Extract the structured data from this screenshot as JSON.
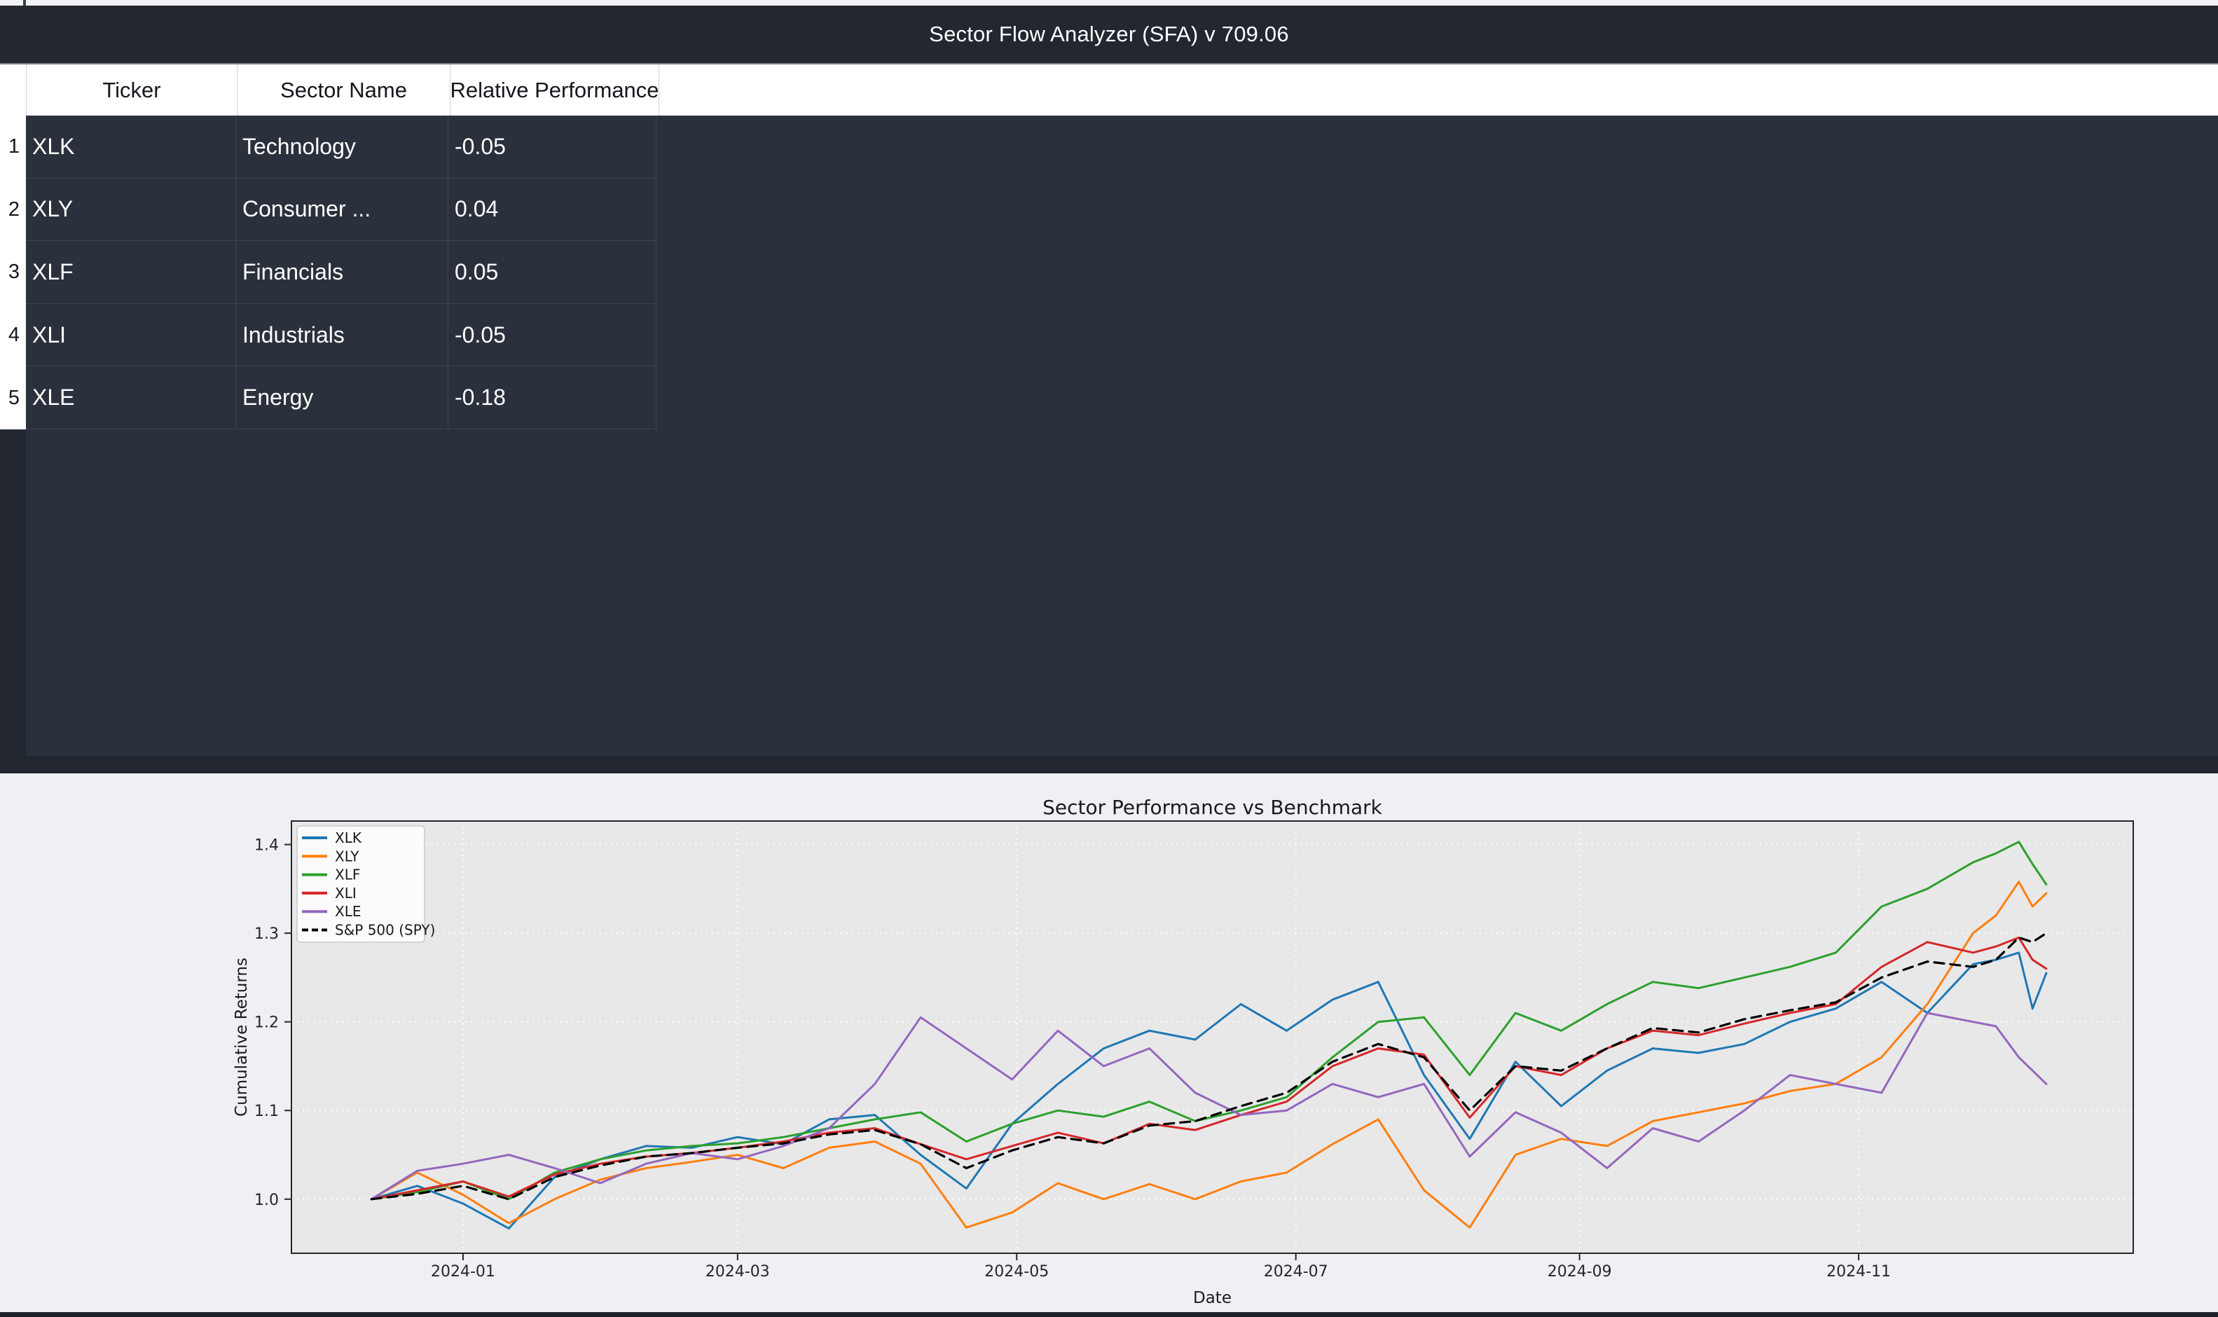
{
  "window": {
    "title": "Sector Flow Analyzer (SFA) v 709.06"
  },
  "table": {
    "columns": [
      "Ticker",
      "Sector Name",
      "Relative Performance"
    ],
    "rows": [
      {
        "num": "1",
        "ticker": "XLK",
        "sector": "Technology",
        "perf": "-0.05"
      },
      {
        "num": "2",
        "ticker": "XLY",
        "sector": "Consumer ...",
        "perf": "0.04"
      },
      {
        "num": "3",
        "ticker": "XLF",
        "sector": "Financials",
        "perf": "0.05"
      },
      {
        "num": "4",
        "ticker": "XLI",
        "sector": "Industrials",
        "perf": "-0.05"
      },
      {
        "num": "5",
        "ticker": "XLE",
        "sector": "Energy",
        "perf": "-0.18"
      }
    ]
  },
  "colors": {
    "titlebar_bg": "#222730",
    "panel_bg": "#2b313c",
    "header_bg": "#ffffff",
    "figure_bg": "#eef0f4",
    "axes_bg": "#e8e8e9"
  },
  "chart_data": {
    "type": "line",
    "title": "Sector Performance vs Benchmark",
    "xlabel": "Date",
    "ylabel": "Cumulative Returns",
    "grid": true,
    "legend_position": "upper left",
    "x_unit": "days since 2023-12-12",
    "xlim_days": [
      -17.5,
      385
    ],
    "ylim": [
      0.939,
      1.4265
    ],
    "y_ticks": [
      1.0,
      1.1,
      1.2,
      1.3,
      1.4
    ],
    "x_ticks": [
      {
        "day": 20,
        "label": "2024-01"
      },
      {
        "day": 80,
        "label": "2024-03"
      },
      {
        "day": 141,
        "label": "2024-05"
      },
      {
        "day": 202,
        "label": "2024-07"
      },
      {
        "day": 264,
        "label": "2024-09"
      },
      {
        "day": 325,
        "label": "2024-11"
      }
    ],
    "days": [
      0,
      10,
      20,
      30,
      40,
      50,
      60,
      70,
      80,
      90,
      100,
      110,
      120,
      130,
      140,
      150,
      160,
      170,
      180,
      190,
      200,
      210,
      220,
      230,
      240,
      250,
      260,
      270,
      280,
      290,
      300,
      310,
      320,
      330,
      340,
      350,
      355,
      360,
      363,
      366
    ],
    "series": [
      {
        "name": "XLK",
        "color": "#1f77b4",
        "style": "solid",
        "values": [
          1.0,
          1.015,
          0.995,
          0.967,
          1.025,
          1.045,
          1.06,
          1.058,
          1.07,
          1.062,
          1.09,
          1.095,
          1.05,
          1.012,
          1.085,
          1.13,
          1.17,
          1.19,
          1.18,
          1.22,
          1.19,
          1.225,
          1.245,
          1.14,
          1.068,
          1.155,
          1.105,
          1.145,
          1.17,
          1.165,
          1.175,
          1.2,
          1.215,
          1.245,
          1.21,
          1.265,
          1.27,
          1.278,
          1.215,
          1.255
        ]
      },
      {
        "name": "XLY",
        "color": "#ff7f0e",
        "style": "solid",
        "values": [
          1.0,
          1.03,
          1.005,
          0.973,
          1.0,
          1.022,
          1.035,
          1.042,
          1.05,
          1.035,
          1.058,
          1.065,
          1.04,
          0.968,
          0.985,
          1.018,
          1.0,
          1.017,
          1.0,
          1.02,
          1.03,
          1.062,
          1.09,
          1.01,
          0.968,
          1.05,
          1.068,
          1.06,
          1.088,
          1.098,
          1.108,
          1.122,
          1.13,
          1.16,
          1.22,
          1.3,
          1.32,
          1.358,
          1.33,
          1.345
        ]
      },
      {
        "name": "XLF",
        "color": "#2ca02c",
        "style": "solid",
        "values": [
          1.0,
          1.008,
          1.02,
          1.0,
          1.03,
          1.045,
          1.055,
          1.06,
          1.063,
          1.07,
          1.08,
          1.09,
          1.098,
          1.065,
          1.085,
          1.1,
          1.093,
          1.11,
          1.088,
          1.1,
          1.115,
          1.16,
          1.2,
          1.205,
          1.14,
          1.21,
          1.19,
          1.22,
          1.245,
          1.238,
          1.25,
          1.262,
          1.278,
          1.33,
          1.35,
          1.38,
          1.39,
          1.403,
          1.378,
          1.355
        ]
      },
      {
        "name": "XLI",
        "color": "#d62728",
        "style": "solid",
        "values": [
          1.0,
          1.01,
          1.02,
          1.003,
          1.028,
          1.04,
          1.048,
          1.052,
          1.058,
          1.065,
          1.075,
          1.08,
          1.062,
          1.045,
          1.06,
          1.075,
          1.063,
          1.085,
          1.078,
          1.095,
          1.11,
          1.15,
          1.17,
          1.163,
          1.092,
          1.15,
          1.14,
          1.17,
          1.19,
          1.185,
          1.198,
          1.21,
          1.22,
          1.262,
          1.29,
          1.278,
          1.285,
          1.295,
          1.27,
          1.26
        ]
      },
      {
        "name": "XLE",
        "color": "#9467bd",
        "style": "solid",
        "values": [
          1.0,
          1.032,
          1.04,
          1.05,
          1.035,
          1.018,
          1.04,
          1.052,
          1.045,
          1.06,
          1.08,
          1.13,
          1.205,
          1.17,
          1.135,
          1.19,
          1.15,
          1.17,
          1.12,
          1.095,
          1.1,
          1.13,
          1.115,
          1.13,
          1.048,
          1.098,
          1.075,
          1.035,
          1.08,
          1.065,
          1.1,
          1.14,
          1.13,
          1.12,
          1.21,
          1.2,
          1.195,
          1.16,
          1.145,
          1.13
        ]
      },
      {
        "name": "S&P 500 (SPY)",
        "color": "#000000",
        "style": "dashed",
        "values": [
          1.0,
          1.006,
          1.015,
          1.0,
          1.025,
          1.038,
          1.048,
          1.052,
          1.058,
          1.063,
          1.073,
          1.078,
          1.062,
          1.035,
          1.055,
          1.07,
          1.063,
          1.083,
          1.088,
          1.105,
          1.12,
          1.155,
          1.175,
          1.16,
          1.1,
          1.15,
          1.145,
          1.17,
          1.193,
          1.188,
          1.203,
          1.213,
          1.222,
          1.25,
          1.268,
          1.262,
          1.27,
          1.295,
          1.29,
          1.3
        ]
      }
    ]
  }
}
